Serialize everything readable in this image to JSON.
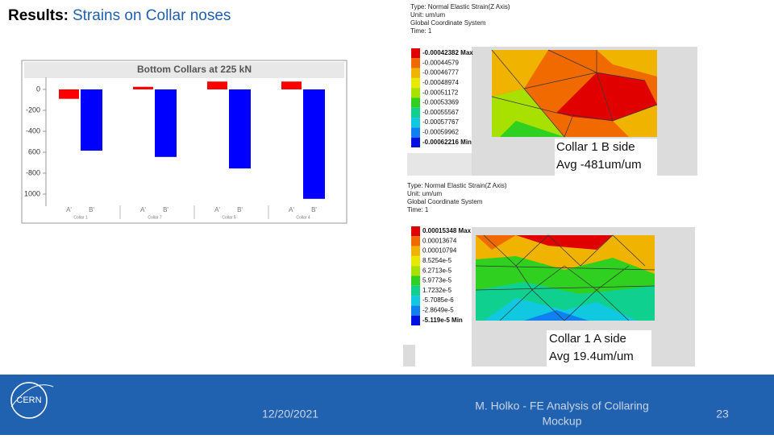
{
  "header": {
    "title_bold": "Results:",
    "title_rest": "Strains on Collar noses"
  },
  "chart": {
    "type": "bar",
    "title": "Bottom Collars at 225 kN",
    "categories": [
      "A'",
      "B'",
      "A'",
      "B'",
      "A'",
      "B'",
      "A'",
      "B'"
    ],
    "groups": [
      "Collar 1",
      "Collar 7",
      "Collar 5",
      "Collar 4"
    ],
    "values": [
      -90,
      -585,
      25,
      -645,
      75,
      -755,
      75,
      -1045
    ],
    "colors": [
      "#ff0000",
      "#0000ff"
    ],
    "ylim": [
      -1100,
      100
    ],
    "yticks": [
      0,
      -200,
      -400,
      {
        "value": -600,
        "label": "600"
      },
      -800,
      {
        "value": -1000,
        "label": "1000"
      }
    ]
  },
  "plots": [
    {
      "header": [
        "Type: Normal Elastic Strain(Z Axis)",
        "Unit: um/um",
        "Global Coordinate System",
        "Time: 1"
      ],
      "legend": [
        "-0.00042382 Max",
        "-0.00044579",
        "-0.00046777",
        "-0.00048974",
        "-0.00051172",
        "-0.00053369",
        "-0.00055567",
        "-0.00057767",
        "-0.00059962",
        "-0.00062216 Min"
      ],
      "callout": [
        "Collar 1 B side",
        "Avg -481um/um"
      ]
    },
    {
      "header": [
        "Type: Normal Elastic Strain(Z Axis)",
        "Unit: um/um",
        "Global Coordinate System",
        "Time: 1"
      ],
      "legend": [
        "0.00015348 Max",
        "0.00013674",
        "0.00010794",
        "8.5254e-5",
        "6.2713e-5",
        "5.9773e-5",
        "1.7232e-5",
        "-5.7085e-6",
        "-2.8649e-5",
        "-5.119e-5 Min"
      ],
      "callout": [
        "Collar 1 A side",
        "Avg 19.4um/um"
      ]
    }
  ],
  "palette": [
    "#e00000",
    "#f06a00",
    "#f0b400",
    "#e8e800",
    "#a8e000",
    "#30d020",
    "#10d090",
    "#10c8e0",
    "#1080f0",
    "#0010e0"
  ],
  "footer": {
    "logo": "CERN",
    "date": "12/20/2021",
    "author": [
      "M. Holko - FE Analysis of Collaring",
      "Mockup"
    ],
    "page": "23"
  }
}
